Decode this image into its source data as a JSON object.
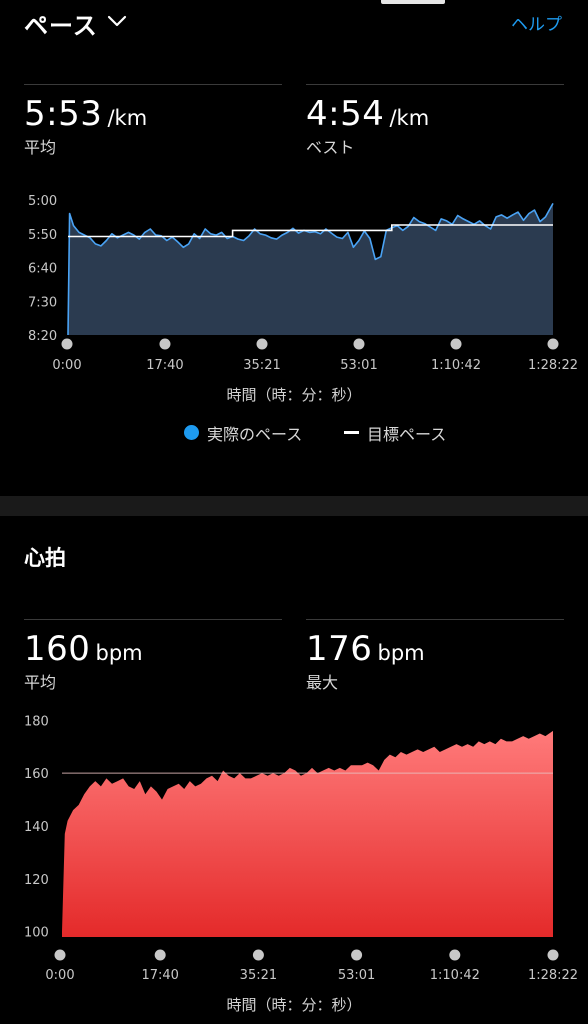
{
  "header": {
    "title": "ペース",
    "help_label": "ヘルプ"
  },
  "pace": {
    "avg_value": "5:53",
    "avg_unit": "/km",
    "avg_label": "平均",
    "best_value": "4:54",
    "best_unit": "/km",
    "best_label": "ベスト",
    "y_ticks": [
      "5:00",
      "5:50",
      "6:40",
      "7:30",
      "8:20"
    ],
    "x_ticks": [
      "0:00",
      "17:40",
      "35:21",
      "53:01",
      "1:10:42",
      "1:28:22"
    ],
    "x_axis_title": "時間（時：分：秒）",
    "legend_actual": "実際のペース",
    "legend_target": "目標ペース"
  },
  "heart_rate": {
    "section_title": "心拍",
    "avg_value": "160",
    "avg_unit": "bpm",
    "avg_label": "平均",
    "max_value": "176",
    "max_unit": "bpm",
    "max_label": "最大",
    "y_ticks": [
      "180",
      "160",
      "140",
      "120",
      "100"
    ],
    "x_ticks": [
      "0:00",
      "17:40",
      "35:21",
      "53:01",
      "1:10:42",
      "1:28:22"
    ],
    "x_axis_title": "時間（時：分：秒）"
  },
  "colors": {
    "accent_blue": "#1e9bf0",
    "pace_line": "#4aa3f5",
    "pace_fill": "#2b3b50",
    "hr_fill_top": "#ff7a7a",
    "hr_fill_bottom": "#e42a2a",
    "background": "#000000"
  },
  "icons": {
    "title_dropdown": "chevron-down-icon",
    "legend_actual": "blue-dot-icon",
    "legend_target": "white-dash-icon",
    "timeline_markers": "grey-dot-icon"
  },
  "chart_data": [
    {
      "type": "area",
      "x_unit": "minutes",
      "y_unit": "seconds per km",
      "y_axis_inverted": true,
      "ylim": [
        300,
        500
      ],
      "xlim": [
        0,
        88.37
      ],
      "x_tick_values": [
        0,
        17.67,
        35.35,
        53.02,
        70.7,
        88.37
      ],
      "y_tick_values": [
        300,
        350,
        400,
        450,
        500
      ],
      "series": [
        {
          "name": "実際のペース",
          "x": [
            0,
            0.3,
            1,
            2,
            3,
            4,
            5,
            6,
            7,
            8,
            9,
            10,
            11,
            12,
            13,
            14,
            15,
            16,
            17,
            18,
            19,
            20,
            21,
            22,
            23,
            24,
            25,
            26,
            27,
            28,
            29,
            30,
            31,
            32,
            33,
            34,
            35,
            36,
            37,
            38,
            39,
            40,
            41,
            42,
            43,
            44,
            45,
            46,
            47,
            48,
            49,
            50,
            51,
            52,
            53,
            54,
            55,
            56,
            57,
            58,
            59,
            60,
            61,
            62,
            63,
            64,
            65,
            66,
            67,
            68,
            69,
            70,
            71,
            72,
            73,
            74,
            75,
            76,
            77,
            78,
            79,
            80,
            81,
            82,
            83,
            84,
            85,
            86,
            87,
            88.37
          ],
          "y": [
            500,
            320,
            338,
            348,
            352,
            356,
            365,
            368,
            360,
            350,
            356,
            352,
            348,
            352,
            358,
            348,
            343,
            352,
            353,
            360,
            355,
            362,
            370,
            365,
            350,
            357,
            343,
            350,
            352,
            348,
            357,
            354,
            358,
            360,
            353,
            343,
            350,
            352,
            356,
            358,
            352,
            348,
            342,
            349,
            345,
            348,
            347,
            350,
            343,
            349,
            355,
            357,
            348,
            370,
            360,
            346,
            357,
            388,
            384,
            345,
            341,
            338,
            345,
            339,
            326,
            332,
            335,
            340,
            345,
            328,
            331,
            336,
            323,
            328,
            332,
            336,
            331,
            338,
            343,
            325,
            322,
            327,
            322,
            318,
            330,
            320,
            315,
            332,
            325,
            305
          ]
        },
        {
          "name": "目標ペース",
          "x": [
            0,
            30,
            30,
            59,
            59,
            88.37
          ],
          "y": [
            354,
            354,
            345,
            345,
            337,
            337
          ]
        }
      ]
    },
    {
      "type": "area",
      "x_unit": "minutes",
      "y_unit": "bpm",
      "ylim": [
        98,
        182
      ],
      "xlim": [
        0,
        88.37
      ],
      "x_tick_values": [
        0,
        17.67,
        35.35,
        53.02,
        70.7,
        88.37
      ],
      "y_tick_values": [
        180,
        160,
        140,
        120,
        100
      ],
      "reference_line": 160,
      "series": [
        {
          "name": "",
          "x": [
            0,
            0.5,
            1,
            2,
            3,
            4,
            5,
            6,
            7,
            8,
            9,
            10,
            11,
            12,
            13,
            14,
            15,
            16,
            17,
            18,
            19,
            20,
            21,
            22,
            23,
            24,
            25,
            26,
            27,
            28,
            29,
            30,
            31,
            32,
            33,
            34,
            35,
            36,
            37,
            38,
            39,
            40,
            41,
            42,
            43,
            44,
            45,
            46,
            47,
            48,
            49,
            50,
            51,
            52,
            53,
            54,
            55,
            56,
            57,
            58,
            59,
            60,
            61,
            62,
            63,
            64,
            65,
            66,
            67,
            68,
            69,
            70,
            71,
            72,
            73,
            74,
            75,
            76,
            77,
            78,
            79,
            80,
            81,
            82,
            83,
            84,
            85,
            86,
            87,
            88.37
          ],
          "y": [
            100,
            137,
            142,
            146,
            148,
            152,
            155,
            157,
            155,
            158,
            156,
            157,
            158,
            155,
            154,
            157,
            152,
            155,
            153,
            150,
            154,
            155,
            156,
            154,
            157,
            155,
            156,
            158,
            159,
            157,
            161,
            159,
            158,
            160,
            158,
            158,
            159,
            160,
            159,
            160,
            159,
            160,
            162,
            161,
            159,
            160,
            162,
            160,
            161,
            162,
            161,
            162,
            161,
            163,
            163,
            163,
            164,
            163,
            161,
            165,
            167,
            166,
            168,
            167,
            168,
            169,
            168,
            169,
            170,
            168,
            169,
            170,
            171,
            170,
            171,
            170,
            172,
            171,
            172,
            171,
            173,
            172,
            172,
            173,
            174,
            173,
            174,
            175,
            174,
            176
          ]
        }
      ]
    }
  ]
}
